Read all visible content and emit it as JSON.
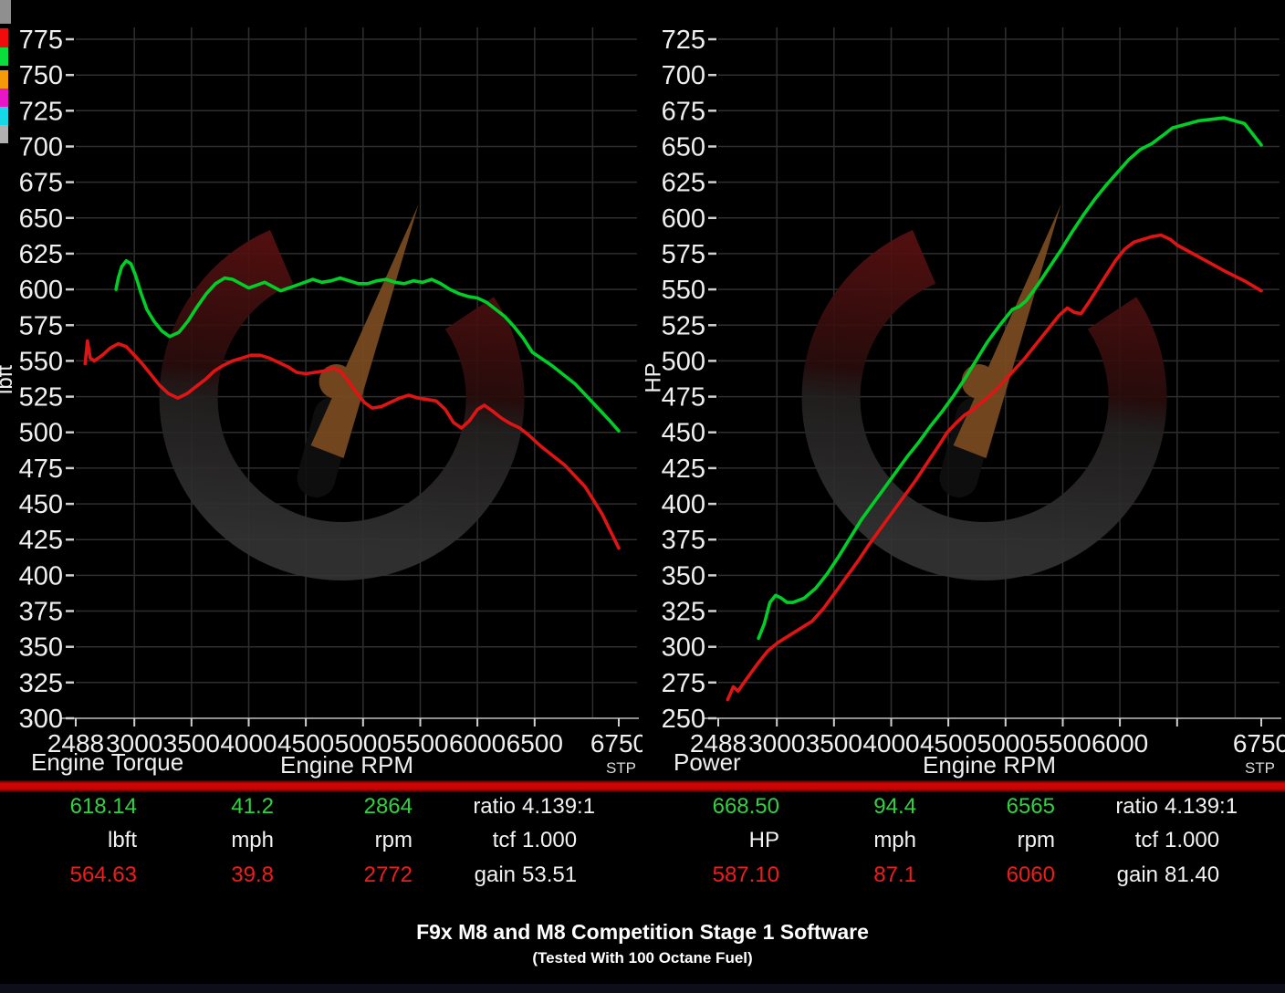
{
  "header": {
    "title": "F9x M8 and M8 Competition Stage 1 Software",
    "subtitle": "(Tested With 100 Octane Fuel)"
  },
  "legend_swatches": [
    {
      "name": "run-color-red",
      "color": "#f00c0c"
    },
    {
      "name": "run-color-green",
      "color": "#0ade3c"
    },
    {
      "name": "run-color-orange",
      "color": "#f59a0a"
    },
    {
      "name": "run-color-magenta",
      "color": "#e816c8"
    },
    {
      "name": "run-color-cyan",
      "color": "#16d8e8"
    },
    {
      "name": "run-color-gray",
      "color": "#b0b0b0"
    }
  ],
  "results": {
    "left": {
      "rows": [
        {
          "v1": "618.14",
          "v2": "41.2",
          "v3": "2864",
          "stat_label": "ratio",
          "stat_value": "4.139:1"
        },
        {
          "v1": "lbft",
          "v2": "mph",
          "v3": "rpm",
          "stat_label": "tcf",
          "stat_value": "1.000"
        },
        {
          "v1": "564.63",
          "v2": "39.8",
          "v3": "2772",
          "stat_label": "gain",
          "stat_value": "53.51"
        }
      ]
    },
    "right": {
      "rows": [
        {
          "v1": "668.50",
          "v2": "94.4",
          "v3": "6565",
          "stat_label": "ratio",
          "stat_value": "4.139:1"
        },
        {
          "v1": "HP",
          "v2": "mph",
          "v3": "rpm",
          "stat_label": "tcf",
          "stat_value": "1.000"
        },
        {
          "v1": "587.10",
          "v2": "87.1",
          "v3": "6060",
          "stat_label": "gain",
          "stat_value": "81.40"
        }
      ]
    }
  },
  "chart_data": [
    {
      "id": "torque",
      "type": "line",
      "corner_label": "Engine Torque",
      "x_label": "Engine RPM",
      "y_label": "lbft",
      "stp_label": "STP",
      "y_min": 300,
      "y_top_label": 775,
      "y_step": 25,
      "grid": true,
      "x_ticks": [
        {
          "rpm": 2488,
          "label": "2488"
        },
        {
          "rpm": 3000,
          "label": "3000"
        },
        {
          "rpm": 3500,
          "label": "3500"
        },
        {
          "rpm": 4000,
          "label": "4000"
        },
        {
          "rpm": 4500,
          "label": "4500"
        },
        {
          "rpm": 5000,
          "label": "5000"
        },
        {
          "rpm": 5500,
          "label": "5500"
        },
        {
          "rpm": 6000,
          "label": "6000"
        },
        {
          "rpm": 6500,
          "label": "6500"
        },
        {
          "rpm": 6750,
          "label": "6750"
        }
      ],
      "series": [
        {
          "name": "stage1-torque",
          "color": "#00cf28",
          "points": [
            [
              2840,
              600
            ],
            [
              2860,
              608
            ],
            [
              2890,
              616
            ],
            [
              2930,
              620
            ],
            [
              2970,
              618
            ],
            [
              3010,
              610
            ],
            [
              3060,
              597
            ],
            [
              3110,
              586
            ],
            [
              3170,
              578
            ],
            [
              3240,
              571
            ],
            [
              3310,
              567
            ],
            [
              3390,
              570
            ],
            [
              3470,
              578
            ],
            [
              3550,
              588
            ],
            [
              3630,
              597
            ],
            [
              3710,
              604
            ],
            [
              3790,
              608
            ],
            [
              3860,
              607
            ],
            [
              3930,
              604
            ],
            [
              4000,
              601
            ],
            [
              4070,
              603
            ],
            [
              4140,
              605
            ],
            [
              4210,
              602
            ],
            [
              4280,
              599
            ],
            [
              4350,
              601
            ],
            [
              4420,
              603
            ],
            [
              4490,
              605
            ],
            [
              4560,
              607
            ],
            [
              4640,
              605
            ],
            [
              4720,
              606
            ],
            [
              4800,
              608
            ],
            [
              4880,
              606
            ],
            [
              4960,
              604
            ],
            [
              5040,
              604
            ],
            [
              5120,
              606
            ],
            [
              5200,
              607
            ],
            [
              5280,
              605
            ],
            [
              5360,
              604
            ],
            [
              5440,
              606
            ],
            [
              5520,
              605
            ],
            [
              5600,
              607
            ],
            [
              5680,
              604
            ],
            [
              5760,
              600
            ],
            [
              5840,
              597
            ],
            [
              5920,
              595
            ],
            [
              6000,
              594
            ],
            [
              6080,
              591
            ],
            [
              6160,
              586
            ],
            [
              6240,
              581
            ],
            [
              6320,
              574
            ],
            [
              6400,
              566
            ],
            [
              6480,
              556
            ],
            [
              6550,
              547
            ],
            [
              6620,
              534
            ],
            [
              6680,
              519
            ],
            [
              6720,
              509
            ],
            [
              6750,
              501
            ]
          ]
        },
        {
          "name": "stock-torque",
          "color": "#e01414",
          "points": [
            [
              2570,
              548
            ],
            [
              2590,
              564
            ],
            [
              2615,
              552
            ],
            [
              2650,
              550
            ],
            [
              2720,
              554
            ],
            [
              2790,
              559
            ],
            [
              2860,
              562
            ],
            [
              2930,
              560
            ],
            [
              3000,
              554
            ],
            [
              3070,
              548
            ],
            [
              3140,
              541
            ],
            [
              3220,
              533
            ],
            [
              3300,
              527
            ],
            [
              3380,
              524
            ],
            [
              3460,
              527
            ],
            [
              3540,
              532
            ],
            [
              3620,
              537
            ],
            [
              3700,
              543
            ],
            [
              3780,
              547
            ],
            [
              3860,
              550
            ],
            [
              3940,
              552
            ],
            [
              4020,
              554
            ],
            [
              4100,
              554
            ],
            [
              4180,
              552
            ],
            [
              4260,
              549
            ],
            [
              4340,
              546
            ],
            [
              4420,
              542
            ],
            [
              4500,
              541
            ],
            [
              4580,
              542
            ],
            [
              4660,
              543
            ],
            [
              4740,
              545
            ],
            [
              4800,
              543
            ],
            [
              4870,
              536
            ],
            [
              4940,
              528
            ],
            [
              5010,
              521
            ],
            [
              5080,
              517
            ],
            [
              5160,
              518
            ],
            [
              5240,
              521
            ],
            [
              5320,
              524
            ],
            [
              5400,
              526
            ],
            [
              5480,
              524
            ],
            [
              5560,
              523
            ],
            [
              5640,
              522
            ],
            [
              5720,
              516
            ],
            [
              5790,
              507
            ],
            [
              5860,
              503
            ],
            [
              5930,
              508
            ],
            [
              6000,
              516
            ],
            [
              6060,
              519
            ],
            [
              6130,
              515
            ],
            [
              6210,
              510
            ],
            [
              6290,
              506
            ],
            [
              6370,
              503
            ],
            [
              6450,
              498
            ],
            [
              6520,
              490
            ],
            [
              6590,
              477
            ],
            [
              6650,
              462
            ],
            [
              6700,
              443
            ],
            [
              6750,
              419
            ]
          ]
        }
      ]
    },
    {
      "id": "power",
      "type": "line",
      "corner_label": "Power",
      "x_label": "Engine RPM",
      "y_label": "HP",
      "stp_label": "STP",
      "y_min": 250,
      "y_top_label": 725,
      "y_step": 25,
      "grid": true,
      "x_ticks": [
        {
          "rpm": 2488,
          "label": "2488"
        },
        {
          "rpm": 3000,
          "label": "3000"
        },
        {
          "rpm": 3500,
          "label": "3500"
        },
        {
          "rpm": 4000,
          "label": "4000"
        },
        {
          "rpm": 4500,
          "label": "4500"
        },
        {
          "rpm": 5000,
          "label": "5000"
        },
        {
          "rpm": 5500,
          "label": "5500"
        },
        {
          "rpm": 6000,
          "label": "6000"
        },
        {
          "rpm": 6500,
          "label": ""
        },
        {
          "rpm": 6750,
          "label": "6750"
        }
      ],
      "series": [
        {
          "name": "stage1-power",
          "color": "#00cf28",
          "points": [
            [
              2840,
              306
            ],
            [
              2890,
              316
            ],
            [
              2940,
              331
            ],
            [
              2990,
              336
            ],
            [
              3040,
              334
            ],
            [
              3090,
              331
            ],
            [
              3140,
              331
            ],
            [
              3240,
              334
            ],
            [
              3340,
              341
            ],
            [
              3440,
              351
            ],
            [
              3540,
              363
            ],
            [
              3640,
              376
            ],
            [
              3740,
              389
            ],
            [
              3840,
              400
            ],
            [
              3940,
              411
            ],
            [
              4040,
              422
            ],
            [
              4140,
              433
            ],
            [
              4240,
              443
            ],
            [
              4340,
              454
            ],
            [
              4440,
              464
            ],
            [
              4540,
              475
            ],
            [
              4640,
              487
            ],
            [
              4740,
              500
            ],
            [
              4840,
              513
            ],
            [
              4940,
              524
            ],
            [
              5000,
              530
            ],
            [
              5060,
              536
            ],
            [
              5120,
              538
            ],
            [
              5180,
              542
            ],
            [
              5280,
              553
            ],
            [
              5380,
              565
            ],
            [
              5480,
              577
            ],
            [
              5580,
              590
            ],
            [
              5680,
              602
            ],
            [
              5780,
              613
            ],
            [
              5880,
              623
            ],
            [
              5980,
              632
            ],
            [
              6080,
              641
            ],
            [
              6180,
              648
            ],
            [
              6280,
              652
            ],
            [
              6380,
              658
            ],
            [
              6460,
              663
            ],
            [
              6565,
              668
            ],
            [
              6640,
              670
            ],
            [
              6700,
              666
            ],
            [
              6750,
              651
            ]
          ]
        },
        {
          "name": "stock-power",
          "color": "#e01414",
          "points": [
            [
              2570,
              263
            ],
            [
              2620,
              272
            ],
            [
              2660,
              269
            ],
            [
              2740,
              278
            ],
            [
              2830,
              288
            ],
            [
              2920,
              297
            ],
            [
              3010,
              303
            ],
            [
              3110,
              308
            ],
            [
              3210,
              313
            ],
            [
              3310,
              318
            ],
            [
              3410,
              327
            ],
            [
              3510,
              338
            ],
            [
              3610,
              349
            ],
            [
              3710,
              360
            ],
            [
              3810,
              372
            ],
            [
              3910,
              383
            ],
            [
              4010,
              394
            ],
            [
              4110,
              405
            ],
            [
              4210,
              416
            ],
            [
              4310,
              428
            ],
            [
              4410,
              440
            ],
            [
              4490,
              450
            ],
            [
              4560,
              456
            ],
            [
              4640,
              462
            ],
            [
              4700,
              465
            ],
            [
              4760,
              469
            ],
            [
              4840,
              474
            ],
            [
              4920,
              480
            ],
            [
              5000,
              487
            ],
            [
              5080,
              494
            ],
            [
              5160,
              501
            ],
            [
              5240,
              509
            ],
            [
              5320,
              517
            ],
            [
              5400,
              525
            ],
            [
              5470,
              532
            ],
            [
              5540,
              537
            ],
            [
              5600,
              534
            ],
            [
              5660,
              533
            ],
            [
              5720,
              540
            ],
            [
              5800,
              550
            ],
            [
              5880,
              560
            ],
            [
              5960,
              570
            ],
            [
              6040,
              578
            ],
            [
              6120,
              583
            ],
            [
              6200,
              585
            ],
            [
              6280,
              587
            ],
            [
              6360,
              588
            ],
            [
              6440,
              585
            ],
            [
              6500,
              581
            ],
            [
              6570,
              572
            ],
            [
              6640,
              563
            ],
            [
              6700,
              556
            ],
            [
              6750,
              549
            ]
          ]
        }
      ]
    }
  ],
  "watermark": {
    "arc_top_color": "#591111",
    "arc_bottom_color": "#343434",
    "needle_color": "#7b4b20"
  },
  "ui_colors": {
    "background": "#000000",
    "grid": "#2e2e2e",
    "axis": "#8f8f8f",
    "tick": "#d0d0d0",
    "label": "#f0f0f0",
    "separator": "#c60404"
  }
}
